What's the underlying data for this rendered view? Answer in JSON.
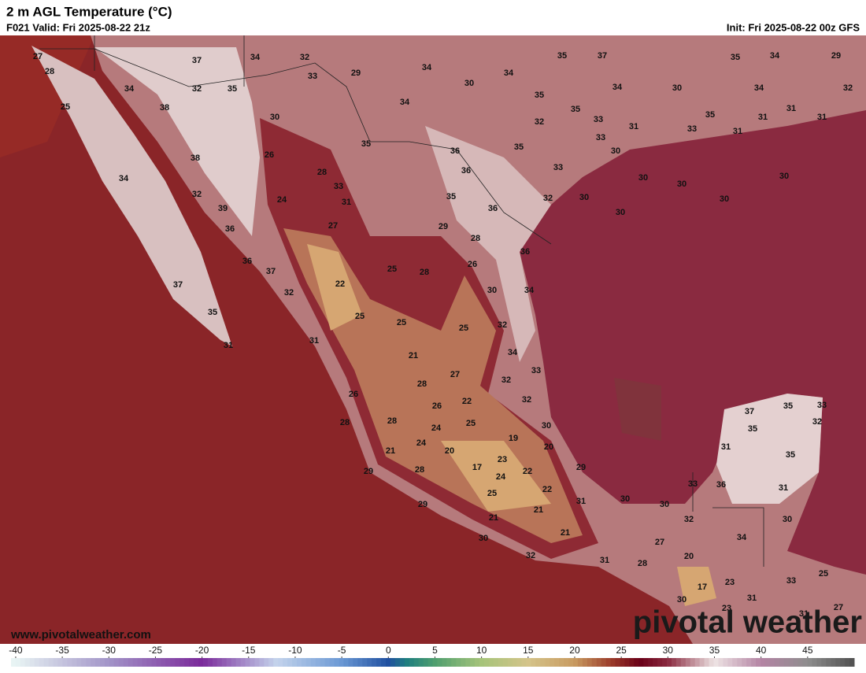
{
  "header": {
    "title": "2 m AGL Temperature (°C)",
    "valid": "F021 Valid: Fri 2025-08-22 21z",
    "init": "Init: Fri 2025-08-22 00z GFS"
  },
  "footer": {
    "url": "www.pivotalweather.com",
    "logo": "pivotal weather"
  },
  "map_labels": [
    27,
    37,
    34,
    32,
    35,
    37,
    35,
    34,
    29,
    28,
    33,
    29,
    34,
    30,
    34,
    34,
    32,
    35,
    34,
    30,
    34,
    32,
    25,
    38,
    34,
    35,
    35,
    31,
    30,
    32,
    33,
    31,
    35,
    31,
    31,
    33,
    31,
    35,
    36,
    35,
    33,
    30,
    38,
    26,
    28,
    36,
    33,
    34,
    33,
    30,
    30,
    30,
    32,
    24,
    31,
    35,
    32,
    30,
    30,
    39,
    36,
    30,
    36,
    27,
    29,
    28,
    36,
    36,
    37,
    25,
    28,
    26,
    22,
    37,
    32,
    30,
    34,
    35,
    25,
    25,
    25,
    32,
    31,
    31,
    34,
    21,
    33,
    27,
    28,
    32,
    26,
    26,
    22,
    32,
    28,
    28,
    24,
    25,
    30,
    37,
    35,
    33,
    32,
    35,
    19,
    21,
    24,
    20,
    20,
    31,
    23,
    17,
    35,
    28,
    24,
    22,
    29,
    29,
    25,
    22,
    33,
    36,
    31,
    31,
    30,
    30,
    29,
    21,
    21,
    32,
    30,
    21,
    34,
    30,
    27,
    32,
    20,
    31,
    28,
    17,
    23,
    33,
    25,
    30,
    31,
    23,
    27,
    31
  ],
  "colorbar": {
    "lim": [
      -40.5,
      50
    ],
    "ticks": [
      -40,
      -35,
      -30,
      -25,
      -20,
      -15,
      -10,
      -5,
      0,
      5,
      10,
      15,
      20,
      25,
      30,
      35,
      40,
      45
    ],
    "stops": [
      [
        -40,
        "#e8f4f4"
      ],
      [
        -30,
        "#a294c8"
      ],
      [
        -20,
        "#7a2a9a"
      ],
      [
        -12,
        "#c4d4ec"
      ],
      [
        -5,
        "#6a98d4"
      ],
      [
        0,
        "#2050a0"
      ],
      [
        2,
        "#1f7f7f"
      ],
      [
        5,
        "#4f9f6f"
      ],
      [
        10,
        "#a6c47a"
      ],
      [
        15,
        "#d4c48a"
      ],
      [
        20,
        "#c89a60"
      ],
      [
        24,
        "#9a3a2a"
      ],
      [
        27,
        "#6a0018"
      ],
      [
        30,
        "#8a2a40"
      ],
      [
        35,
        "#eee4e4"
      ],
      [
        40,
        "#b484a4"
      ],
      [
        45,
        "#8e8e8e"
      ],
      [
        50,
        "#505050"
      ]
    ]
  }
}
